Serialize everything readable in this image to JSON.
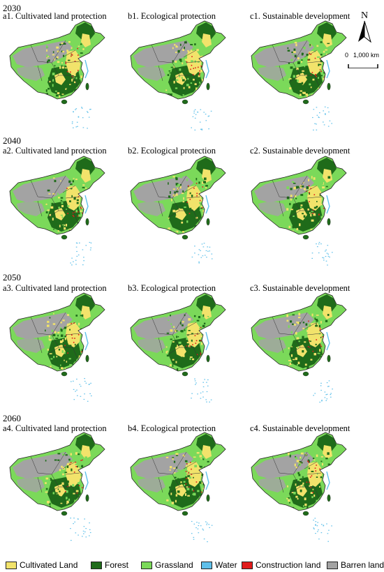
{
  "rows": [
    {
      "year": "2030",
      "panels": [
        {
          "title": "a1. Cultivated land protection"
        },
        {
          "title": "b1. Ecological protection"
        },
        {
          "title": "c1. Sustainable development"
        }
      ]
    },
    {
      "year": "2040",
      "panels": [
        {
          "title": "a2. Cultivated land protection"
        },
        {
          "title": "b2. Ecological protection"
        },
        {
          "title": "c2. Sustainable development"
        }
      ]
    },
    {
      "year": "2050",
      "panels": [
        {
          "title": "a3. Cultivated land protection"
        },
        {
          "title": "b3. Ecological protection"
        },
        {
          "title": "c3. Sustainable development"
        }
      ]
    },
    {
      "year": "2060",
      "panels": [
        {
          "title": "a4. Cultivated land protection"
        },
        {
          "title": "b4. Ecological protection"
        },
        {
          "title": "c4. Sustainable development"
        }
      ]
    }
  ],
  "north_arrow": {
    "label": "N"
  },
  "scale_bar": {
    "start": "0",
    "end": "1,000 km"
  },
  "legend": [
    {
      "label": "Cultivated Land",
      "color": "#f2e36b"
    },
    {
      "label": "Forest",
      "color": "#1f6b1a"
    },
    {
      "label": "Grassland",
      "color": "#7bd95a"
    },
    {
      "label": "Water",
      "color": "#5fc0ea"
    },
    {
      "label": "Construction land",
      "color": "#e01b1b"
    },
    {
      "label": "Barren land",
      "color": "#a3a3a3"
    }
  ]
}
